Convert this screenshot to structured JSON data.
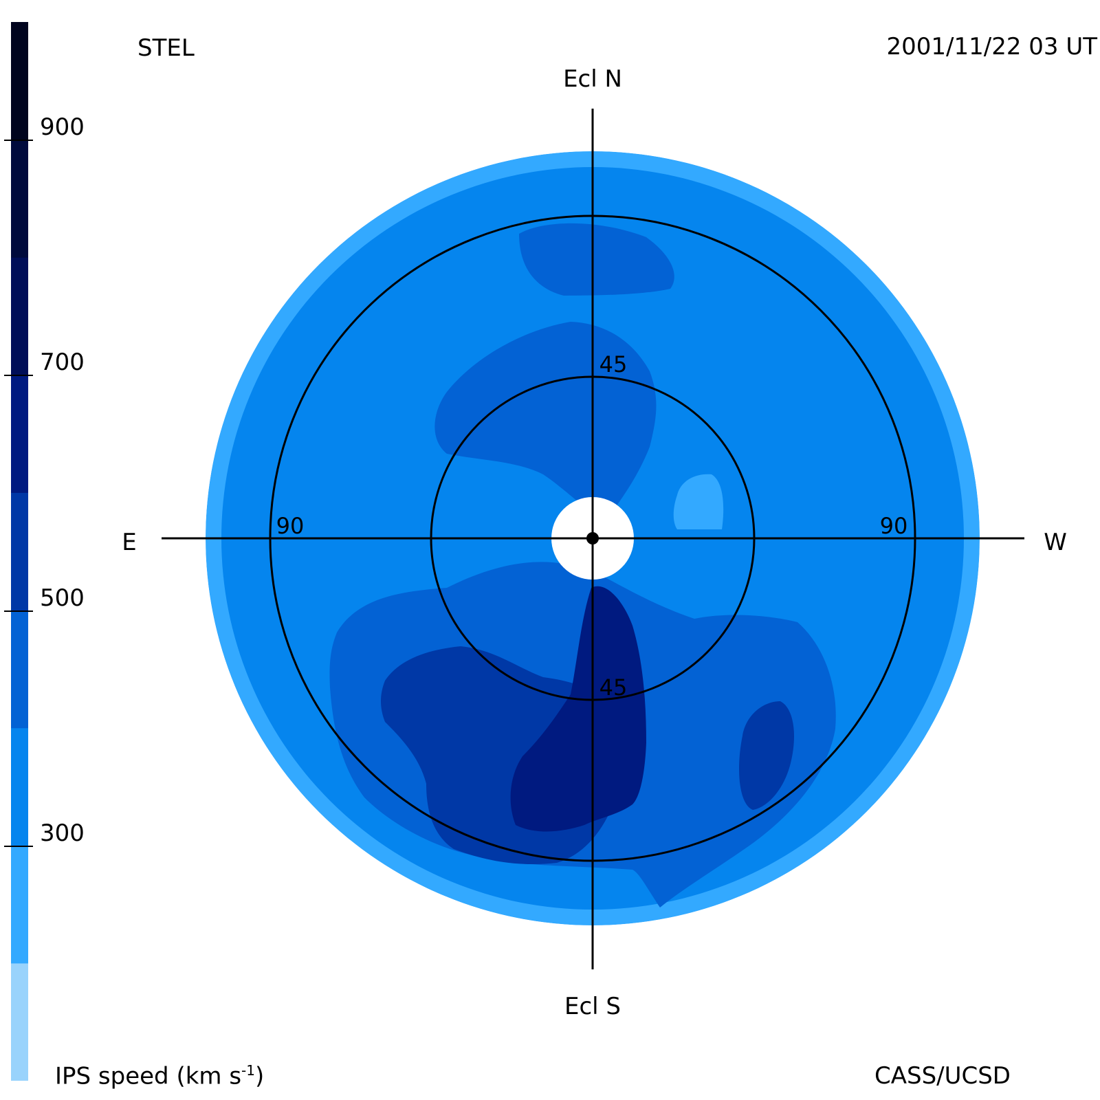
{
  "header": {
    "source": "STEL",
    "timestamp": "2001/11/22 03 UT"
  },
  "footer": {
    "credit": "CASS/UCSD",
    "colorbar_title": "IPS speed (km s",
    "colorbar_title_sup": "-1",
    "colorbar_title_end": ")"
  },
  "chart_data": {
    "type": "heatmap",
    "title": "",
    "projection": "fisheye sky map (ecliptic)",
    "directions": {
      "north": "Ecl N",
      "south": "Ecl S",
      "east": "E",
      "west": "W"
    },
    "rings": [
      {
        "elongation_deg": 45,
        "labels": [
          "45",
          "45"
        ]
      },
      {
        "elongation_deg": 90,
        "labels": [
          "90",
          "90"
        ]
      }
    ],
    "colorbar": {
      "label": "IPS speed (km s-1)",
      "range": [
        100,
        1000
      ],
      "ticks": [
        300,
        500,
        700,
        900
      ],
      "tick_labels": [
        "300",
        "500",
        "700",
        "900"
      ],
      "levels": [
        {
          "min": 100,
          "max": 200,
          "color": "#99d3fc"
        },
        {
          "min": 200,
          "max": 300,
          "color": "#33a9ff"
        },
        {
          "min": 300,
          "max": 400,
          "color": "#0585ee"
        },
        {
          "min": 400,
          "max": 500,
          "color": "#0362d4"
        },
        {
          "min": 500,
          "max": 600,
          "color": "#0038a6"
        },
        {
          "min": 600,
          "max": 700,
          "color": "#001a80"
        },
        {
          "min": 700,
          "max": 800,
          "color": "#000e58"
        },
        {
          "min": 800,
          "max": 900,
          "color": "#000a3c"
        },
        {
          "min": 900,
          "max": 1000,
          "color": "#00041e"
        }
      ]
    },
    "regions": [
      {
        "name": "outer rim",
        "speed_range": [
          200,
          300
        ]
      },
      {
        "name": "background",
        "speed_range": [
          300,
          400
        ]
      },
      {
        "name": "north patch",
        "speed_range": [
          400,
          500
        ]
      },
      {
        "name": "north-center band",
        "speed_range": [
          400,
          500
        ]
      },
      {
        "name": "west small patch",
        "speed_range": [
          200,
          300
        ]
      },
      {
        "name": "southeast broad region",
        "speed_range": [
          400,
          500
        ]
      },
      {
        "name": "south central",
        "speed_range": [
          500,
          600
        ]
      },
      {
        "name": "south core",
        "speed_range": [
          600,
          700
        ]
      },
      {
        "name": "southwest patch",
        "speed_range": [
          500,
          600
        ]
      }
    ],
    "legend_position": "left"
  }
}
